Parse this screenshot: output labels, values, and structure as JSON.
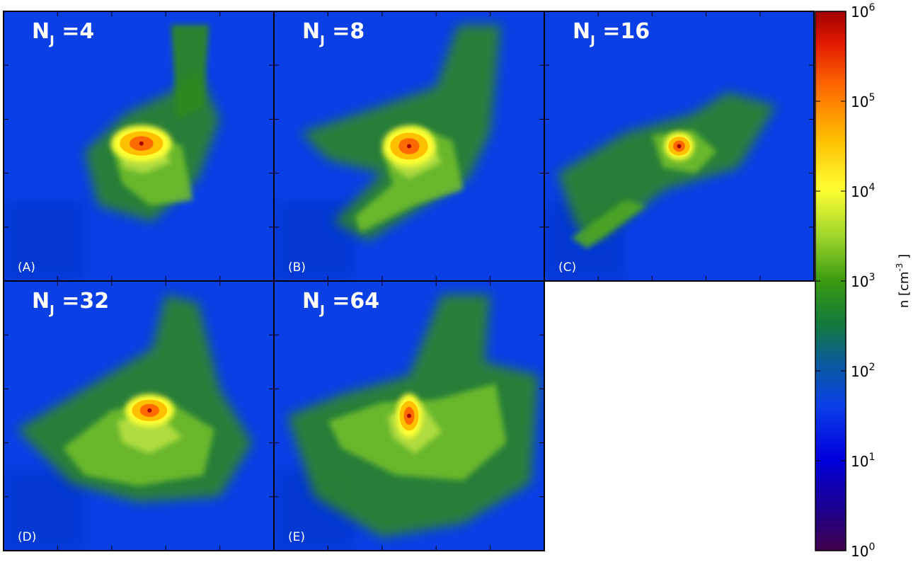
{
  "chart_data": {
    "type": "heatmap",
    "colormap": "jet",
    "colorbar": {
      "scale": "log",
      "range": [
        1,
        1000000
      ],
      "ticks": [
        {
          "base": "10",
          "exp": "0"
        },
        {
          "base": "10",
          "exp": "1"
        },
        {
          "base": "10",
          "exp": "2"
        },
        {
          "base": "10",
          "exp": "3"
        },
        {
          "base": "10",
          "exp": "4"
        },
        {
          "base": "10",
          "exp": "5"
        },
        {
          "base": "10",
          "exp": "6"
        }
      ],
      "label": {
        "prefix": "n [cm",
        "exp": "-3",
        "suffix": " ]"
      }
    },
    "panels": [
      {
        "letter": "(A)",
        "title": {
          "main": "N",
          "sub": "J",
          "rest": " =4"
        },
        "peak": 6.0
      },
      {
        "letter": "(B)",
        "title": {
          "main": "N",
          "sub": "J",
          "rest": " =8"
        },
        "peak": 6.0
      },
      {
        "letter": "(C)",
        "title": {
          "main": "N",
          "sub": "J",
          "rest": " =16"
        },
        "peak": 6.0
      },
      {
        "letter": "(D)",
        "title": {
          "main": "N",
          "sub": "J",
          "rest": " =32"
        },
        "peak": 6.0
      },
      {
        "letter": "(E)",
        "title": {
          "main": "N",
          "sub": "J",
          "rest": " =64"
        },
        "peak": 6.0
      }
    ]
  }
}
